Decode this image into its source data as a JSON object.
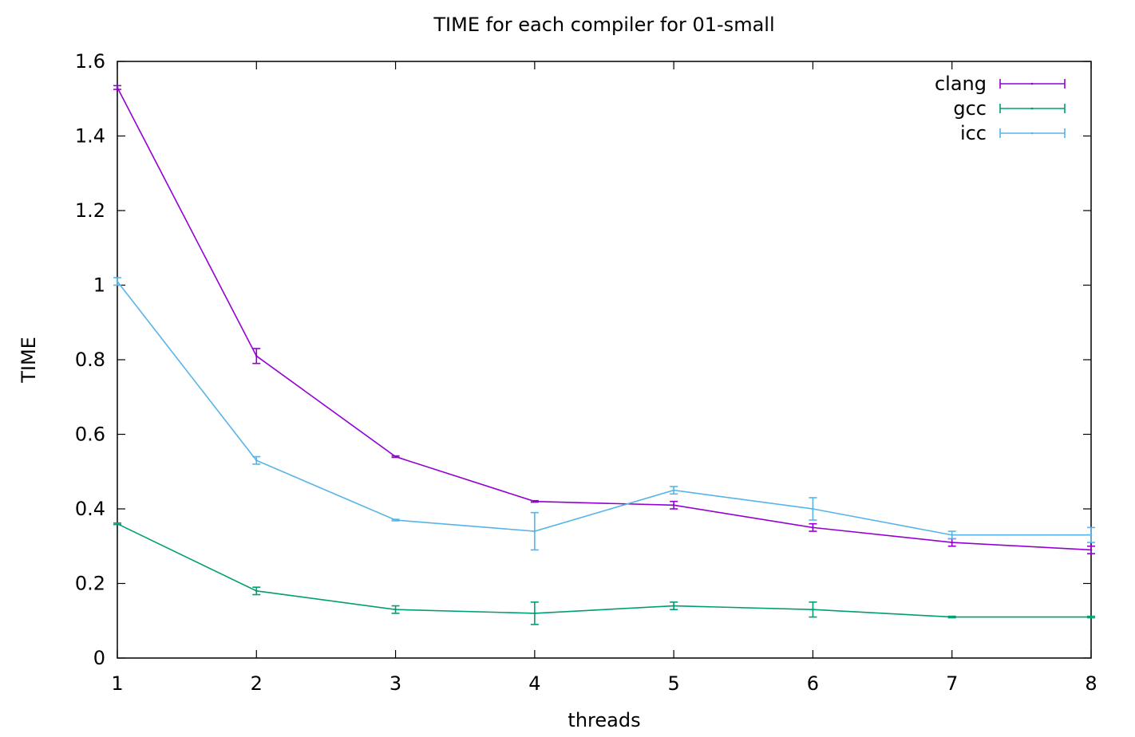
{
  "chart_data": {
    "type": "line",
    "title": "TIME for each compiler for 01-small",
    "xlabel": "threads",
    "ylabel": "TIME",
    "xlim": [
      1,
      8
    ],
    "ylim": [
      0,
      1.6
    ],
    "x_ticks": [
      1,
      2,
      3,
      4,
      5,
      6,
      7,
      8
    ],
    "y_ticks": [
      0,
      0.2,
      0.4,
      0.6,
      0.8,
      1,
      1.2,
      1.4,
      1.6
    ],
    "y_tick_labels": [
      "0",
      "0.2",
      "0.4",
      "0.6",
      "0.8",
      "1",
      "1.2",
      "1.4",
      "1.6"
    ],
    "grid": false,
    "legend_position": "top-right",
    "error_bars": true,
    "x": [
      1,
      2,
      3,
      4,
      5,
      6,
      7,
      8
    ],
    "series": [
      {
        "name": "clang",
        "color": "#9400d3",
        "values": [
          1.53,
          0.81,
          0.54,
          0.42,
          0.41,
          0.35,
          0.31,
          0.29
        ],
        "err_low": [
          1.525,
          0.79,
          0.538,
          0.418,
          0.4,
          0.34,
          0.3,
          0.28
        ],
        "err_high": [
          1.535,
          0.83,
          0.542,
          0.422,
          0.42,
          0.36,
          0.32,
          0.3
        ]
      },
      {
        "name": "gcc",
        "color": "#009e73",
        "values": [
          0.36,
          0.18,
          0.13,
          0.12,
          0.14,
          0.13,
          0.11,
          0.11
        ],
        "err_low": [
          0.358,
          0.17,
          0.12,
          0.09,
          0.13,
          0.11,
          0.108,
          0.108
        ],
        "err_high": [
          0.362,
          0.19,
          0.14,
          0.15,
          0.15,
          0.15,
          0.112,
          0.112
        ]
      },
      {
        "name": "icc",
        "color": "#56b4e9",
        "values": [
          1.01,
          0.53,
          0.37,
          0.34,
          0.45,
          0.4,
          0.33,
          0.33
        ],
        "err_low": [
          1.0,
          0.52,
          0.368,
          0.29,
          0.44,
          0.37,
          0.32,
          0.31
        ],
        "err_high": [
          1.02,
          0.54,
          0.372,
          0.39,
          0.46,
          0.43,
          0.34,
          0.35
        ]
      }
    ]
  }
}
